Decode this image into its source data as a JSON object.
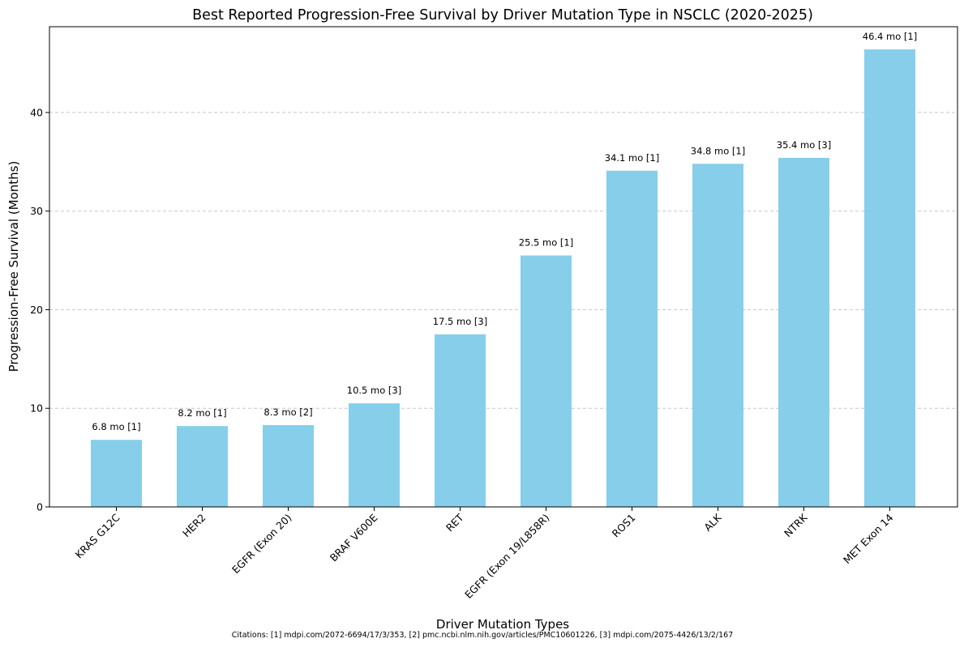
{
  "chart_data": {
    "type": "bar",
    "title": "Best Reported Progression-Free Survival by Driver Mutation Type in NSCLC (2020-2025)",
    "xlabel": "Driver Mutation Types",
    "ylabel": "Progression-Free Survival (Months)",
    "categories": [
      "KRAS G12C",
      "HER2",
      "EGFR (Exon 20)",
      "BRAF V600E",
      "RET",
      "EGFR (Exon 19/L858R)",
      "ROS1",
      "ALK",
      "NTRK",
      "MET Exon 14"
    ],
    "values": [
      6.8,
      8.2,
      8.3,
      10.5,
      17.5,
      25.5,
      34.1,
      34.8,
      35.4,
      46.4
    ],
    "data_labels": [
      "6.8 mo [1]",
      "8.2 mo [1]",
      "8.3 mo [2]",
      "10.5 mo [3]",
      "17.5 mo [3]",
      "25.5 mo [1]",
      "34.1 mo [1]",
      "34.8 mo [1]",
      "35.4 mo [3]",
      "46.4 mo [1]"
    ],
    "ylim": [
      0,
      48.7
    ],
    "yticks": [
      0,
      10,
      20,
      30,
      40
    ],
    "grid": "y-dashed",
    "bar_color": "#87ceeb",
    "footnote": "Citations: [1] mdpi.com/2072-6694/17/3/353, [2] pmc.ncbi.nlm.nih.gov/articles/PMC10601226, [3] mdpi.com/2075-4426/13/2/167"
  }
}
